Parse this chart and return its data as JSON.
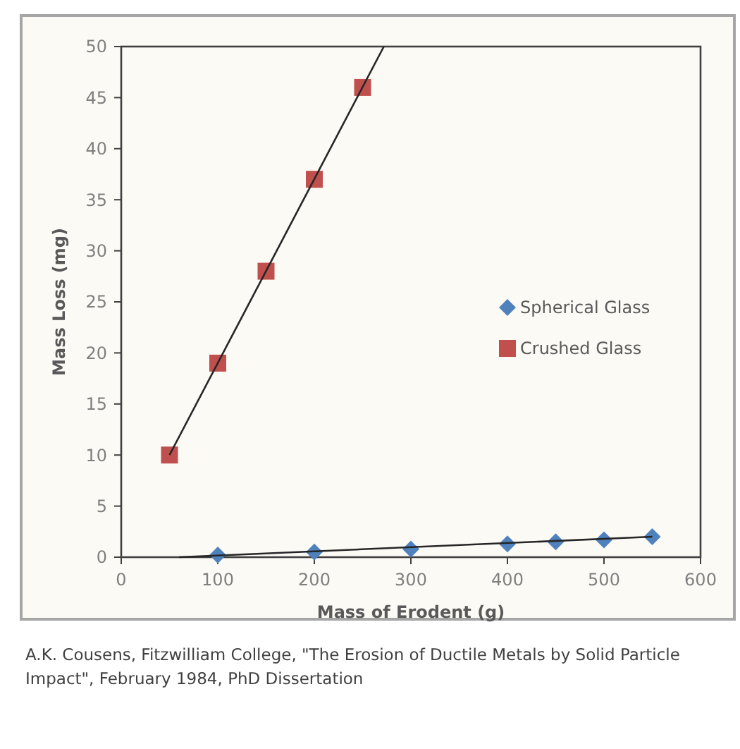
{
  "chart_data": {
    "type": "scatter",
    "xlabel": "Mass of Erodent (g)",
    "ylabel": "Mass Loss (mg)",
    "xlim": [
      0,
      600
    ],
    "xticks": [
      0,
      100,
      200,
      300,
      400,
      500,
      600
    ],
    "ylim": [
      0,
      50
    ],
    "yticks": [
      0,
      5,
      10,
      15,
      20,
      25,
      30,
      35,
      40,
      45,
      50
    ],
    "grid": false,
    "legend": "right",
    "line_style": "solid",
    "series": [
      {
        "name": "Spherical Glass",
        "color": "#4f81bd",
        "marker": "diamond",
        "x": [
          100,
          200,
          300,
          400,
          450,
          500,
          550
        ],
        "values": [
          0.2,
          0.5,
          0.8,
          1.3,
          1.5,
          1.7,
          2.0
        ]
      },
      {
        "name": "Crushed Glass",
        "color": "#c0504d",
        "marker": "square",
        "x": [
          50,
          100,
          150,
          200,
          250
        ],
        "values": [
          10,
          19,
          28,
          37,
          46
        ]
      },
      {
        "type": "line",
        "color": "#262626",
        "marker": "none",
        "x": [
          60,
          550
        ],
        "values": [
          0,
          2.0
        ]
      },
      {
        "type": "line",
        "color": "#262626",
        "marker": "none",
        "x": [
          50,
          272
        ],
        "values": [
          10,
          50
        ]
      }
    ],
    "annotations": [
      "A.K. Cousens, Fitzwilliam College, \"The Erosion of Ductile Metals by Solid Particle Impact\", February 1984, PhD Dissertation"
    ]
  }
}
